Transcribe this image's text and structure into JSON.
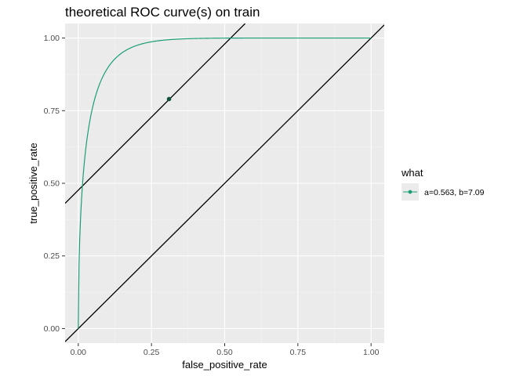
{
  "chart_data": {
    "type": "line",
    "title": "theoretical ROC curve(s) on train",
    "xlabel": "false_positive_rate",
    "ylabel": "true_positive_rate",
    "xlim": [
      -0.045,
      1.045
    ],
    "ylim": [
      -0.05,
      1.05
    ],
    "x_ticks": [
      0.0,
      0.25,
      0.5,
      0.75,
      1.0
    ],
    "x_tick_labels": [
      "0.00",
      "0.25",
      "0.50",
      "0.75",
      "1.00"
    ],
    "y_ticks": [
      0.0,
      0.25,
      0.5,
      0.75,
      1.0
    ],
    "y_tick_labels": [
      "0.00",
      "0.25",
      "0.50",
      "0.75",
      "1.00"
    ],
    "grid": true,
    "legend": {
      "title": "what",
      "placement": "right",
      "entries": [
        {
          "label": "a=0.563, b=7.09",
          "color": "#1b9e77"
        }
      ]
    },
    "series": [
      {
        "name": "a=0.563, b=7.09",
        "color": "#1b9e77",
        "curve": "beta_roc",
        "a": 0.563,
        "b": 7.09
      }
    ],
    "highlight_point": {
      "x": 0.31,
      "y": 0.79,
      "color": "#11523e"
    },
    "reference_lines": [
      {
        "kind": "diagonal",
        "x": [
          -0.045,
          1.045
        ],
        "y": [
          -0.045,
          1.045
        ],
        "color": "#000000"
      },
      {
        "kind": "tangent",
        "x": [
          -0.045,
          0.57
        ],
        "y": [
          0.431,
          1.05
        ],
        "color": "#000000"
      }
    ]
  }
}
